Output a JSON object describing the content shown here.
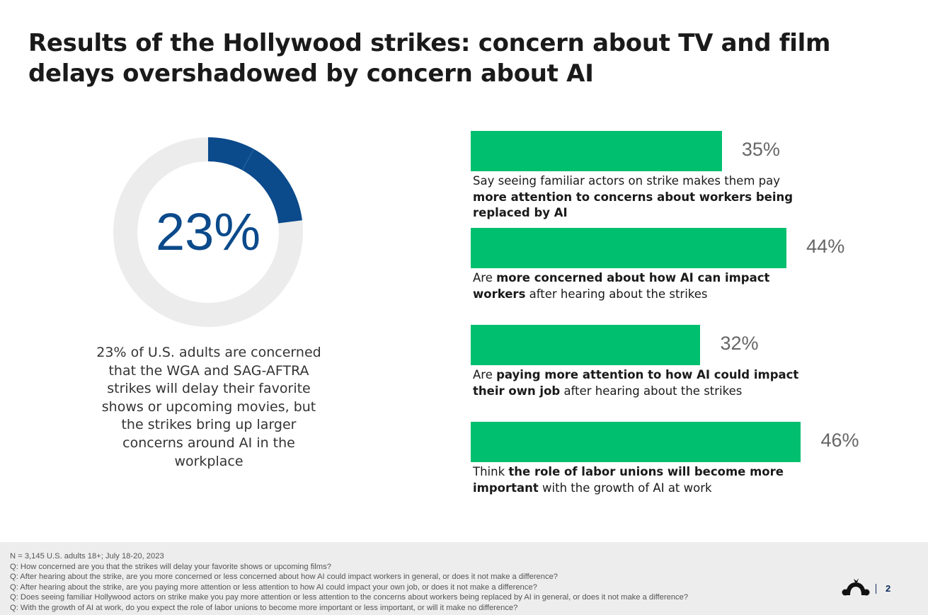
{
  "title": "Results of the Hollywood strikes: concern about TV and film delays overshadowed by concern about AI",
  "colors": {
    "accent_blue": "#0b4a8b",
    "bar_green": "#00bf6f",
    "track_gray": "#ebeceb"
  },
  "chart_data": [
    {
      "type": "pie",
      "variant": "donut",
      "values": [
        23,
        77
      ],
      "center_label": "23%",
      "caption": "23% of U.S. adults are concerned that the WGA and SAG-AFTRA strikes will delay their favorite shows or upcoming movies, but the strikes bring up larger concerns around AI in the workplace"
    },
    {
      "type": "bar",
      "orientation": "horizontal",
      "xlim": [
        0,
        100
      ],
      "grid": false,
      "bars": [
        {
          "value": 35,
          "label": "35%",
          "desc": [
            {
              "t": "Say seeing familiar actors on strike makes them pay "
            },
            {
              "t": "more attention to concerns about workers being replaced by AI",
              "b": true
            }
          ]
        },
        {
          "value": 44,
          "label": "44%",
          "desc": [
            {
              "t": "Are "
            },
            {
              "t": "more concerned about how AI can impact workers",
              "b": true
            },
            {
              "t": " after hearing about the strikes"
            }
          ]
        },
        {
          "value": 32,
          "label": "32%",
          "desc": [
            {
              "t": "Are "
            },
            {
              "t": "paying more attention to how AI could impact their own job",
              "b": true
            },
            {
              "t": " after hearing about the strikes"
            }
          ]
        },
        {
          "value": 46,
          "label": "46%",
          "desc": [
            {
              "t": "Think "
            },
            {
              "t": "the role of labor unions will become more important",
              "b": true
            },
            {
              "t": " with the growth of AI at work"
            }
          ]
        }
      ]
    }
  ],
  "footer": {
    "notes": [
      "N = 3,145 U.S. adults 18+; July 18-20, 2023",
      "Q: How concerned are you that the strikes will delay your favorite shows or upcoming films?",
      "Q: After hearing about the strike, are you more concerned or less concerned about how AI could impact workers in general, or does it not make a difference?",
      "Q: After hearing about the strike, are you paying more attention or less attention to how AI could impact your own job, or does it not make a difference?",
      "Q: Does seeing familiar Hollywood actors on strike make you pay more attention or less attention to the concerns about workers being replaced by AI in general, or does it not make a difference?",
      "Q: With the growth of AI at work, do you expect the role of labor unions to become more important or less important, or will it make no difference?"
    ],
    "page_number": "2",
    "logo_icon": "surveymonkey-logo-icon"
  }
}
